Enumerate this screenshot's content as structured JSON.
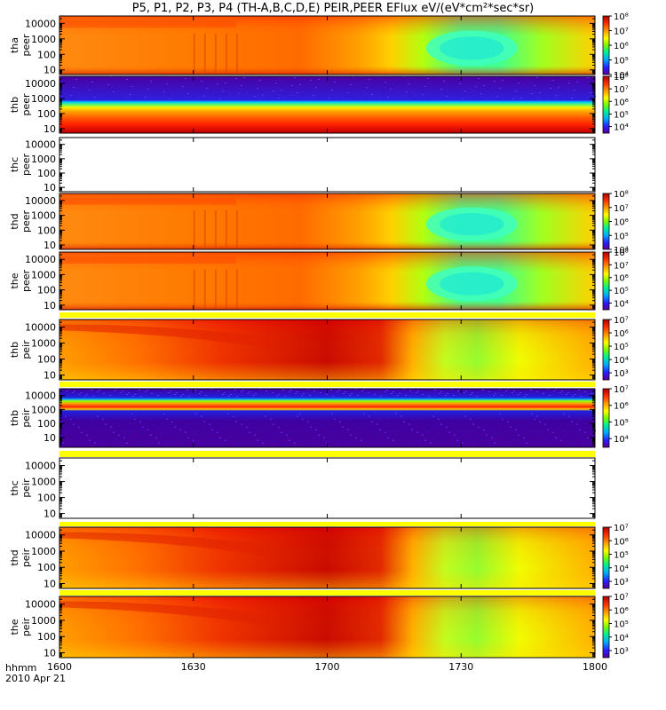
{
  "title": "P5, P1, P2, P3, P4 (TH-A,B,C,D,E) PEIR,PEER EFlux eV/(eV*cm²*sec*sr)",
  "time_axis": {
    "label": "hhmm",
    "date": "2010 Apr 21",
    "ticks": [
      "1600",
      "1630",
      "1700",
      "1730",
      "1800"
    ]
  },
  "chart_data": [
    {
      "type": "heatmap",
      "probe": "tha",
      "product": "peer",
      "ylabel": [
        "tha",
        "peer"
      ],
      "y_scale": "log",
      "ylim": [
        5,
        30000
      ],
      "y_ticks": [
        "10",
        "100",
        "1000",
        "10000"
      ],
      "colorbar_scale": "log",
      "colorbar_range": [
        10000,
        100000000
      ],
      "colorbar_ticks": [
        "10⁴",
        "10⁵",
        "10⁶",
        "10⁷",
        "10⁸"
      ],
      "pattern": "warm",
      "has_data": true
    },
    {
      "type": "heatmap",
      "probe": "thb",
      "product": "peer",
      "ylabel": [
        "thb",
        "peer"
      ],
      "y_scale": "log",
      "ylim": [
        5,
        30000
      ],
      "y_ticks": [
        "10",
        "100",
        "1000",
        "10000"
      ],
      "colorbar_scale": "log",
      "colorbar_range": [
        3000,
        100000000
      ],
      "colorbar_ticks": [
        "10⁴",
        "10⁵",
        "10⁶",
        "10⁷",
        "10⁸"
      ],
      "pattern": "bands_peer",
      "has_data": true
    },
    {
      "type": "heatmap",
      "probe": "thc",
      "product": "peer",
      "ylabel": [
        "thc",
        "peer"
      ],
      "y_scale": "log",
      "ylim": [
        5,
        30000
      ],
      "y_ticks": [
        "10",
        "100",
        "1000",
        "10000"
      ],
      "colorbar_ticks": [],
      "pattern": "empty",
      "has_data": false
    },
    {
      "type": "heatmap",
      "probe": "thd",
      "product": "peer",
      "ylabel": [
        "thd",
        "peer"
      ],
      "y_scale": "log",
      "ylim": [
        5,
        30000
      ],
      "y_ticks": [
        "10",
        "100",
        "1000",
        "10000"
      ],
      "colorbar_scale": "log",
      "colorbar_range": [
        10000,
        100000000
      ],
      "colorbar_ticks": [
        "10⁴",
        "10⁵",
        "10⁶",
        "10⁷",
        "10⁸"
      ],
      "pattern": "warm",
      "has_data": true
    },
    {
      "type": "heatmap",
      "probe": "the",
      "product": "peer",
      "ylabel": [
        "the",
        "peer"
      ],
      "y_scale": "log",
      "ylim": [
        5,
        30000
      ],
      "y_ticks": [
        "10",
        "100",
        "1000",
        "10000"
      ],
      "colorbar_scale": "log",
      "colorbar_range": [
        3000,
        100000000
      ],
      "colorbar_ticks": [
        "10⁴",
        "10⁵",
        "10⁶",
        "10⁷",
        "10⁸"
      ],
      "pattern": "warm",
      "has_data": true
    },
    {
      "type": "heatmap",
      "probe": "thb",
      "product": "peir",
      "ylabel": [
        "thb",
        "peir"
      ],
      "y_scale": "log",
      "ylim": [
        5,
        30000
      ],
      "y_ticks": [
        "10",
        "100",
        "1000",
        "10000"
      ],
      "colorbar_scale": "log",
      "colorbar_range": [
        300,
        10000000
      ],
      "colorbar_ticks": [
        "10³",
        "10⁴",
        "10⁵",
        "10⁶",
        "10⁷"
      ],
      "pattern": "ion",
      "has_data": true
    },
    {
      "type": "heatmap",
      "probe": "thb",
      "product": "peir",
      "ylabel": [
        "thb",
        "peir"
      ],
      "y_scale": "log",
      "ylim": [
        2,
        30000
      ],
      "y_ticks": [
        "10",
        "100",
        "1000",
        "10000"
      ],
      "colorbar_scale": "log",
      "colorbar_range": [
        3000,
        10000000
      ],
      "colorbar_ticks": [
        "10⁴",
        "10⁵",
        "10⁶",
        "10⁷"
      ],
      "pattern": "bands_peir",
      "has_data": true
    },
    {
      "type": "heatmap",
      "probe": "thc",
      "product": "peir",
      "ylabel": [
        "thc",
        "peir"
      ],
      "y_scale": "log",
      "ylim": [
        5,
        30000
      ],
      "y_ticks": [
        "10",
        "100",
        "1000",
        "10000"
      ],
      "colorbar_ticks": [],
      "pattern": "empty",
      "has_data": false
    },
    {
      "type": "heatmap",
      "probe": "thd",
      "product": "peir",
      "ylabel": [
        "thd",
        "peir"
      ],
      "y_scale": "log",
      "ylim": [
        5,
        30000
      ],
      "y_ticks": [
        "10",
        "100",
        "1000",
        "10000"
      ],
      "colorbar_scale": "log",
      "colorbar_range": [
        300,
        10000000
      ],
      "colorbar_ticks": [
        "10³",
        "10⁴",
        "10⁵",
        "10⁶",
        "10⁷"
      ],
      "pattern": "ion",
      "has_data": true
    },
    {
      "type": "heatmap",
      "probe": "the",
      "product": "peir",
      "ylabel": [
        "the",
        "peir"
      ],
      "y_scale": "log",
      "ylim": [
        5,
        30000
      ],
      "y_ticks": [
        "10",
        "100",
        "1000",
        "10000"
      ],
      "colorbar_scale": "log",
      "colorbar_range": [
        300,
        10000000
      ],
      "colorbar_ticks": [
        "10³",
        "10⁴",
        "10⁵",
        "10⁶",
        "10⁷"
      ],
      "pattern": "ion",
      "has_data": true
    }
  ],
  "colors": {
    "colormap": [
      "#ffffff",
      "#7f00ff",
      "#2020ff",
      "#00b0ff",
      "#00ff80",
      "#a0ff00",
      "#ffff00",
      "#ff8000",
      "#ff2000",
      "#b00000"
    ],
    "background_fill": "#ffff00"
  }
}
